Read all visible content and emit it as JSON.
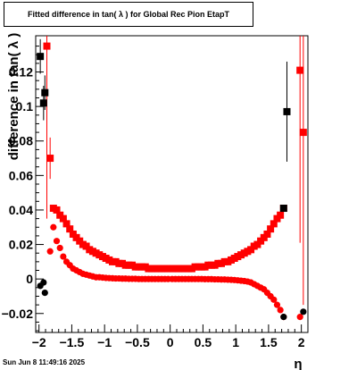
{
  "chart_data": {
    "type": "scatter",
    "title": "Fitted difference in tan( λ ) for Global Rec Pion EtapT",
    "xlabel": "η",
    "ylabel": "difference in tan( λ )",
    "xlim": [
      -2.05,
      2.1
    ],
    "ylim": [
      -0.031,
      0.141
    ],
    "xticks": [
      -2,
      -1.5,
      -1,
      -0.5,
      0,
      0.5,
      1,
      1.5,
      2
    ],
    "xtick_labels": [
      "−2",
      "−1.5",
      "−1",
      "−0.5",
      "0",
      "0.5",
      "1",
      "1.5",
      "2"
    ],
    "yticks": [
      -0.02,
      0,
      0.02,
      0.04,
      0.06,
      0.08,
      0.1,
      0.12
    ],
    "ytick_labels": [
      "−0.02",
      "0",
      "0.02",
      "0.04",
      "0.06",
      "0.08",
      "0.1",
      "0.12"
    ],
    "grid": false,
    "series": [
      {
        "marker": "square",
        "color": "#ff0000",
        "x": [
          -1.88,
          -1.83,
          -1.78,
          -1.73,
          -1.68,
          -1.63,
          -1.58,
          -1.53,
          -1.48,
          -1.43,
          -1.38,
          -1.33,
          -1.28,
          -1.23,
          -1.18,
          -1.13,
          -1.08,
          -1.03,
          -0.98,
          -0.93,
          -0.88,
          -0.83,
          -0.78,
          -0.73,
          -0.68,
          -0.63,
          -0.58,
          -0.53,
          -0.48,
          -0.43,
          -0.38,
          -0.33,
          -0.28,
          -0.23,
          -0.18,
          -0.13,
          -0.08,
          -0.03,
          0.03,
          0.08,
          0.13,
          0.18,
          0.23,
          0.28,
          0.33,
          0.38,
          0.43,
          0.48,
          0.53,
          0.58,
          0.63,
          0.68,
          0.73,
          0.78,
          0.83,
          0.88,
          0.93,
          0.98,
          1.03,
          1.08,
          1.13,
          1.18,
          1.23,
          1.28,
          1.33,
          1.38,
          1.43,
          1.48,
          1.53,
          1.58,
          1.63,
          1.68,
          1.73,
          1.98,
          2.03
        ],
        "y": [
          0.135,
          0.07,
          0.041,
          0.04,
          0.037,
          0.035,
          0.032,
          0.029,
          0.026,
          0.024,
          0.022,
          0.02,
          0.019,
          0.017,
          0.016,
          0.015,
          0.014,
          0.013,
          0.012,
          0.011,
          0.01,
          0.01,
          0.009,
          0.009,
          0.008,
          0.008,
          0.008,
          0.007,
          0.007,
          0.007,
          0.007,
          0.006,
          0.006,
          0.006,
          0.006,
          0.006,
          0.006,
          0.006,
          0.006,
          0.006,
          0.006,
          0.006,
          0.006,
          0.006,
          0.006,
          0.007,
          0.007,
          0.007,
          0.007,
          0.008,
          0.008,
          0.008,
          0.009,
          0.009,
          0.01,
          0.01,
          0.011,
          0.012,
          0.013,
          0.014,
          0.015,
          0.016,
          0.017,
          0.019,
          0.02,
          0.022,
          0.024,
          0.026,
          0.029,
          0.032,
          0.035,
          0.037,
          0.041,
          0.121,
          0.085
        ],
        "yerr": [
          0.1,
          0.012,
          0.002,
          0.002,
          0.001,
          0.001,
          0.001,
          0.001,
          0.001,
          0.001,
          0.001,
          0.001,
          0.001,
          0.001,
          0.001,
          0.001,
          0.001,
          0.001,
          0.001,
          0.001,
          0.001,
          0.001,
          0.001,
          0.001,
          0.001,
          0.001,
          0.001,
          0.001,
          0.001,
          0.001,
          0.001,
          0.001,
          0.001,
          0.001,
          0.001,
          0.001,
          0.001,
          0.001,
          0.001,
          0.001,
          0.001,
          0.001,
          0.001,
          0.001,
          0.001,
          0.001,
          0.001,
          0.001,
          0.001,
          0.001,
          0.001,
          0.001,
          0.001,
          0.001,
          0.001,
          0.001,
          0.001,
          0.001,
          0.001,
          0.001,
          0.001,
          0.001,
          0.001,
          0.001,
          0.001,
          0.001,
          0.001,
          0.001,
          0.001,
          0.001,
          0.001,
          0.001,
          0.002,
          0.1,
          0.1
        ]
      },
      {
        "marker": "circle",
        "color": "#ff0000",
        "x": [
          -1.83,
          -1.78,
          -1.73,
          -1.68,
          -1.63,
          -1.58,
          -1.53,
          -1.48,
          -1.43,
          -1.38,
          -1.33,
          -1.28,
          -1.23,
          -1.18,
          -1.13,
          -1.08,
          -1.03,
          -0.98,
          -0.93,
          -0.88,
          -0.83,
          -0.78,
          -0.73,
          -0.68,
          -0.63,
          -0.58,
          -0.53,
          -0.48,
          -0.43,
          -0.38,
          -0.33,
          -0.28,
          -0.23,
          -0.18,
          -0.13,
          -0.08,
          -0.03,
          0.03,
          0.08,
          0.13,
          0.18,
          0.23,
          0.28,
          0.33,
          0.38,
          0.43,
          0.48,
          0.53,
          0.58,
          0.63,
          0.68,
          0.73,
          0.78,
          0.83,
          0.88,
          0.93,
          0.98,
          1.03,
          1.08,
          1.13,
          1.18,
          1.23,
          1.28,
          1.33,
          1.38,
          1.43,
          1.48,
          1.53,
          1.58,
          1.63,
          1.68,
          1.73,
          1.98
        ],
        "y": [
          0.016,
          0.03,
          0.022,
          0.018,
          0.013,
          0.01,
          0.008,
          0.006,
          0.005,
          0.004,
          0.003,
          0.0025,
          0.002,
          0.0015,
          0.001,
          0.001,
          0.0008,
          0.0006,
          0.0005,
          0.0004,
          0.0003,
          0.0003,
          0.0002,
          0.0002,
          0.0001,
          0.0001,
          0.0001,
          0.0,
          0.0,
          0.0,
          0.0,
          0.0,
          0.0,
          0.0,
          0.0,
          0.0,
          0.0,
          0.0,
          0.0,
          0.0,
          0.0,
          0.0,
          0.0,
          0.0,
          0.0,
          0.0,
          0.0,
          -0.0001,
          -0.0001,
          -0.0001,
          -0.0002,
          -0.0002,
          -0.0003,
          -0.0003,
          -0.0004,
          -0.0005,
          -0.0006,
          -0.0008,
          -0.001,
          -0.0012,
          -0.0015,
          -0.002,
          -0.003,
          -0.004,
          -0.005,
          -0.006,
          -0.008,
          -0.01,
          -0.012,
          -0.015,
          -0.018,
          -0.022,
          -0.022
        ]
      },
      {
        "marker": "square",
        "color": "#000000",
        "x": [
          -1.98,
          -1.93,
          -1.91,
          1.73,
          1.78
        ],
        "y": [
          0.129,
          0.102,
          0.108,
          0.041,
          0.097
        ],
        "yerr": [
          0.01,
          0.01,
          0.01,
          0.001,
          0.029
        ]
      },
      {
        "marker": "circle",
        "color": "#000000",
        "x": [
          -1.98,
          -1.93,
          -1.91,
          1.73,
          2.03
        ],
        "y": [
          -0.004,
          -0.002,
          -0.008,
          -0.022,
          -0.019
        ]
      }
    ]
  },
  "footer": {
    "timestamp": "Sun Jun  8 11:49:16 2025"
  }
}
